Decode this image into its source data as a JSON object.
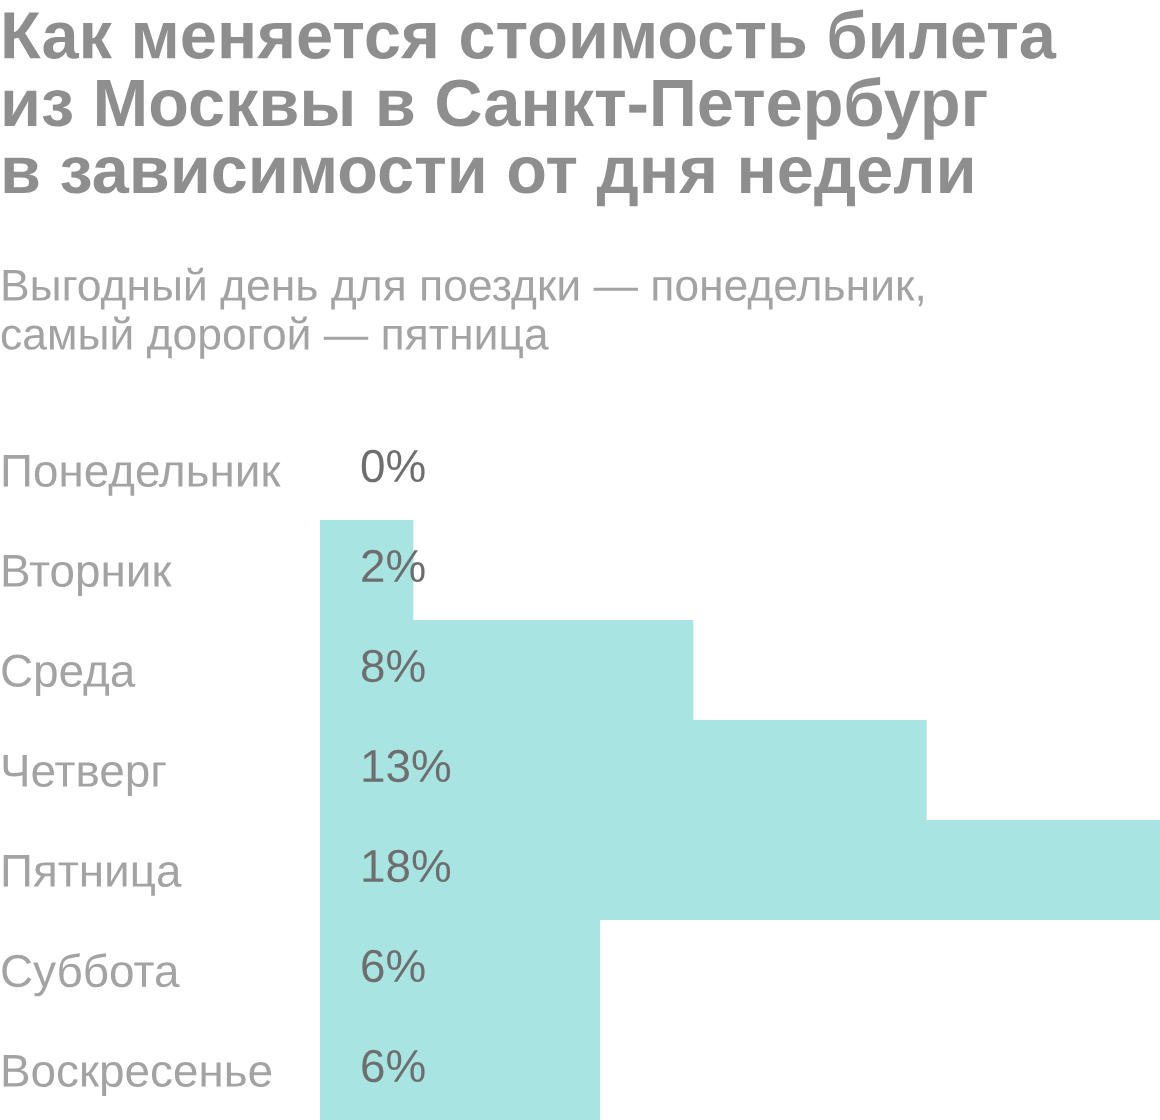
{
  "chart_data": {
    "type": "bar",
    "orientation": "horizontal",
    "title": "Как меняется стоимость билета\nиз Москвы в Санкт-Петербург\nв зависимости от дня недели",
    "subtitle": "Выгодный день для поездки — понедельник,\nсамый дорогой — пятница",
    "categories": [
      "Понедельник",
      "Вторник",
      "Среда",
      "Четверг",
      "Пятница",
      "Суббота",
      "Воскресенье"
    ],
    "values": [
      0,
      2,
      8,
      13,
      18,
      6,
      6
    ],
    "value_labels": [
      "0%",
      "2%",
      "8%",
      "13%",
      "18%",
      "6%",
      "6%"
    ],
    "color": "#a8e4e1",
    "xlim": [
      0,
      18
    ],
    "tick_labels": "y",
    "grid": false,
    "legend": false
  }
}
